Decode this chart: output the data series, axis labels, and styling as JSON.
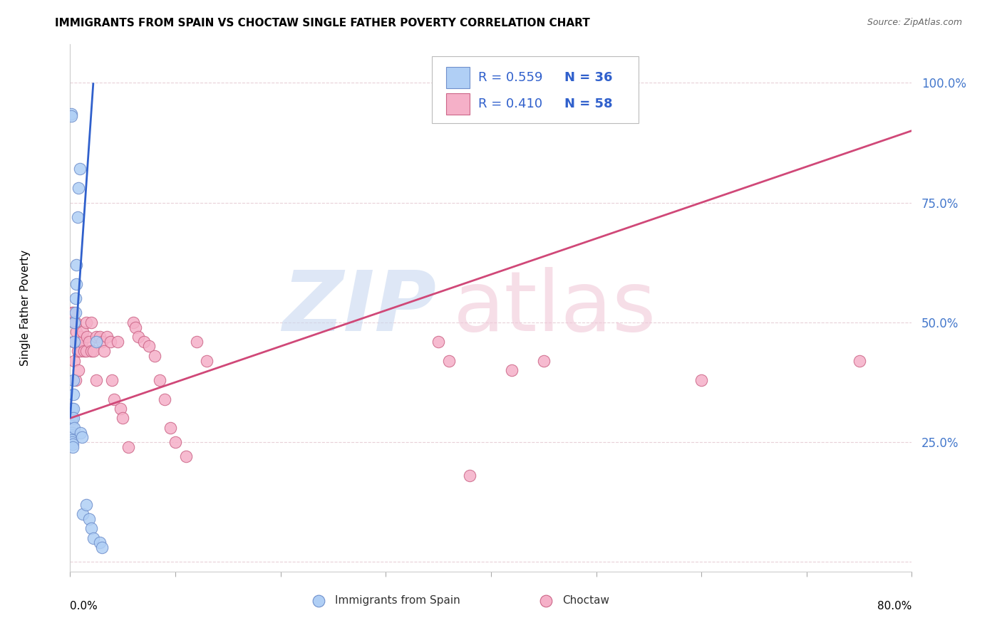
{
  "title": "IMMIGRANTS FROM SPAIN VS CHOCTAW SINGLE FATHER POVERTY CORRELATION CHART",
  "source": "Source: ZipAtlas.com",
  "ylabel": "Single Father Poverty",
  "xlim": [
    0.0,
    0.8
  ],
  "ylim": [
    -0.02,
    1.08
  ],
  "ytick_vals": [
    0.0,
    0.25,
    0.5,
    0.75,
    1.0
  ],
  "ytick_labels": [
    "",
    "25.0%",
    "50.0%",
    "75.0%",
    "100.0%"
  ],
  "legend_r1": "R = 0.559",
  "legend_n1": "N = 36",
  "legend_r2": "R = 0.410",
  "legend_n2": "N = 58",
  "blue_face": "#b0cff5",
  "blue_edge": "#7090cc",
  "pink_face": "#f5b0c8",
  "pink_edge": "#cc6688",
  "blue_line_color": "#3060cc",
  "pink_line_color": "#d04878",
  "grid_color": "#e8d0d8",
  "ytick_color": "#4478cc",
  "legend_text_color": "#3060cc",
  "watermark_zip_color": "#c8d8f0",
  "watermark_atlas_color": "#f0c8d8",
  "blue_x": [
    0.001,
    0.001,
    0.0015,
    0.0015,
    0.0015,
    0.0018,
    0.0018,
    0.002,
    0.002,
    0.002,
    0.0022,
    0.0025,
    0.003,
    0.003,
    0.003,
    0.003,
    0.0035,
    0.004,
    0.004,
    0.005,
    0.005,
    0.006,
    0.006,
    0.007,
    0.008,
    0.009,
    0.01,
    0.011,
    0.012,
    0.015,
    0.018,
    0.02,
    0.022,
    0.025,
    0.028,
    0.03
  ],
  "blue_y": [
    0.935,
    0.93,
    0.32,
    0.3,
    0.285,
    0.27,
    0.265,
    0.26,
    0.255,
    0.25,
    0.245,
    0.24,
    0.38,
    0.35,
    0.32,
    0.3,
    0.28,
    0.5,
    0.46,
    0.55,
    0.52,
    0.62,
    0.58,
    0.72,
    0.78,
    0.82,
    0.27,
    0.26,
    0.1,
    0.12,
    0.09,
    0.07,
    0.05,
    0.46,
    0.04,
    0.03
  ],
  "pink_x": [
    0.001,
    0.0015,
    0.002,
    0.003,
    0.003,
    0.004,
    0.004,
    0.005,
    0.005,
    0.006,
    0.007,
    0.008,
    0.009,
    0.01,
    0.01,
    0.011,
    0.012,
    0.013,
    0.015,
    0.015,
    0.016,
    0.018,
    0.02,
    0.02,
    0.022,
    0.025,
    0.025,
    0.028,
    0.03,
    0.032,
    0.035,
    0.038,
    0.04,
    0.042,
    0.045,
    0.048,
    0.05,
    0.055,
    0.06,
    0.062,
    0.065,
    0.07,
    0.075,
    0.08,
    0.085,
    0.09,
    0.095,
    0.1,
    0.11,
    0.12,
    0.13,
    0.35,
    0.36,
    0.38,
    0.42,
    0.45,
    0.6,
    0.75
  ],
  "pink_y": [
    0.295,
    0.52,
    0.3,
    0.52,
    0.46,
    0.5,
    0.42,
    0.5,
    0.38,
    0.48,
    0.44,
    0.4,
    0.46,
    0.47,
    0.44,
    0.46,
    0.48,
    0.44,
    0.5,
    0.44,
    0.47,
    0.46,
    0.5,
    0.44,
    0.44,
    0.47,
    0.38,
    0.47,
    0.46,
    0.44,
    0.47,
    0.46,
    0.38,
    0.34,
    0.46,
    0.32,
    0.3,
    0.24,
    0.5,
    0.49,
    0.47,
    0.46,
    0.45,
    0.43,
    0.38,
    0.34,
    0.28,
    0.25,
    0.22,
    0.46,
    0.42,
    0.46,
    0.42,
    0.18,
    0.4,
    0.42,
    0.38,
    0.42
  ]
}
